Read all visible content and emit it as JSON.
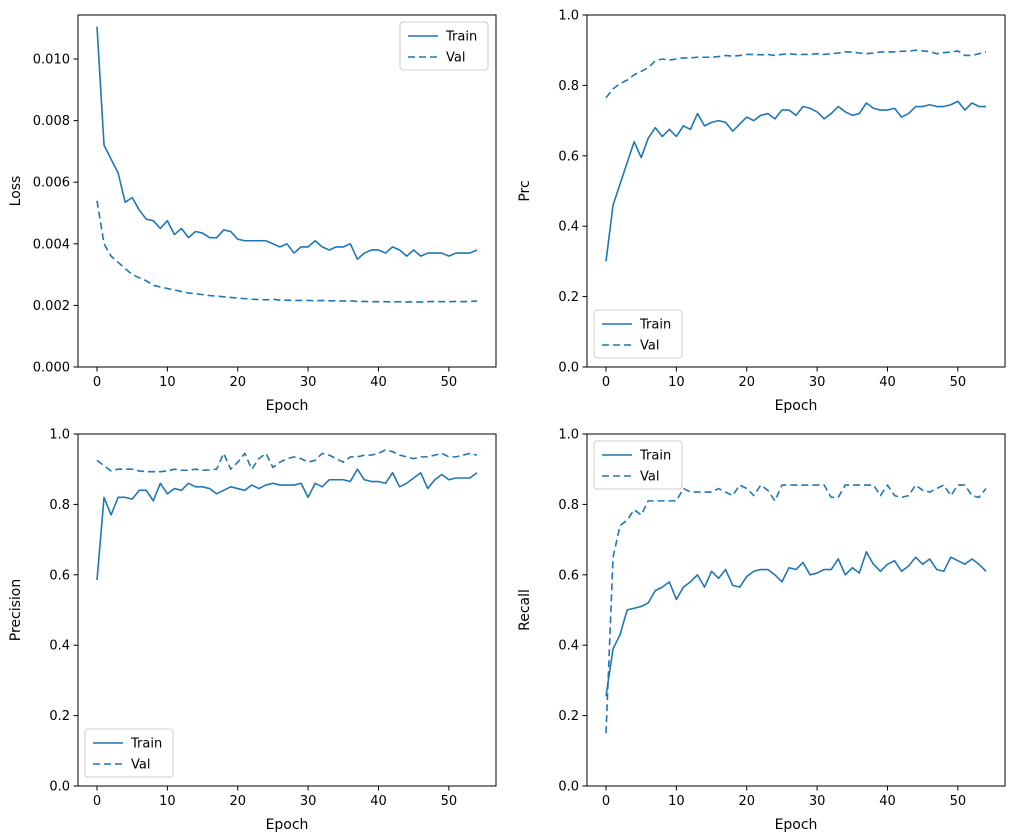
{
  "figure": {
    "background": "#ffffff",
    "line_color": "#1f77b4",
    "spine_color": "#000000",
    "legend_border_color": "#cccccc"
  },
  "epochs": [
    0,
    1,
    2,
    3,
    4,
    5,
    6,
    7,
    8,
    9,
    10,
    11,
    12,
    13,
    14,
    15,
    16,
    17,
    18,
    19,
    20,
    21,
    22,
    23,
    24,
    25,
    26,
    27,
    28,
    29,
    30,
    31,
    32,
    33,
    34,
    35,
    36,
    37,
    38,
    39,
    40,
    41,
    42,
    43,
    44,
    45,
    46,
    47,
    48,
    49,
    50,
    51,
    52,
    53,
    54
  ],
  "chart_data": [
    {
      "type": "line",
      "title": "",
      "xlabel": "Epoch",
      "ylabel": "Loss",
      "xlim": [
        -2.7,
        56.7
      ],
      "ylim": [
        0,
        0.01143
      ],
      "x_ticks": [
        0,
        10,
        20,
        30,
        40,
        50
      ],
      "x_tick_labels": [
        "0",
        "10",
        "20",
        "30",
        "40",
        "50"
      ],
      "y_ticks": [
        0.0,
        0.002,
        0.004,
        0.006,
        0.008,
        0.01
      ],
      "y_tick_labels": [
        "0.000",
        "0.002",
        "0.004",
        "0.006",
        "0.008",
        "0.010"
      ],
      "grid": false,
      "legend_position": "upper-right",
      "legend_entries": [
        {
          "label": "Train",
          "style": "solid"
        },
        {
          "label": "Val",
          "style": "dashed"
        }
      ],
      "series": [
        {
          "name": "Train",
          "style": "solid",
          "values": [
            0.01105,
            0.0072,
            0.00675,
            0.0063,
            0.00535,
            0.0055,
            0.0051,
            0.0048,
            0.00475,
            0.0045,
            0.00475,
            0.0043,
            0.0045,
            0.0042,
            0.0044,
            0.00435,
            0.0042,
            0.0042,
            0.00445,
            0.0044,
            0.00415,
            0.0041,
            0.0041,
            0.0041,
            0.0041,
            0.004,
            0.0039,
            0.004,
            0.0037,
            0.0039,
            0.0039,
            0.0041,
            0.0039,
            0.0038,
            0.0039,
            0.0039,
            0.004,
            0.0035,
            0.0037,
            0.0038,
            0.0038,
            0.0037,
            0.0039,
            0.0038,
            0.0036,
            0.0038,
            0.0036,
            0.0037,
            0.0037,
            0.0037,
            0.0036,
            0.0037,
            0.0037,
            0.0037,
            0.0038
          ]
        },
        {
          "name": "Val",
          "style": "dashed",
          "values": [
            0.0054,
            0.004,
            0.0036,
            0.0034,
            0.0032,
            0.003,
            0.0029,
            0.0028,
            0.00265,
            0.0026,
            0.00255,
            0.0025,
            0.00245,
            0.0024,
            0.00238,
            0.00235,
            0.00232,
            0.0023,
            0.00228,
            0.00226,
            0.00224,
            0.00222,
            0.0022,
            0.00219,
            0.00218,
            0.0022,
            0.00217,
            0.00217,
            0.00216,
            0.00216,
            0.00216,
            0.00215,
            0.00216,
            0.00215,
            0.00215,
            0.00214,
            0.00215,
            0.00213,
            0.00213,
            0.00212,
            0.00212,
            0.00212,
            0.00211,
            0.00212,
            0.00211,
            0.00212,
            0.00211,
            0.00212,
            0.00213,
            0.00212,
            0.00212,
            0.00213,
            0.00212,
            0.00213,
            0.00214
          ]
        }
      ]
    },
    {
      "type": "line",
      "title": "",
      "xlabel": "Epoch",
      "ylabel": "Prc",
      "xlim": [
        -2.7,
        56.7
      ],
      "ylim": [
        0,
        1.0
      ],
      "x_ticks": [
        0,
        10,
        20,
        30,
        40,
        50
      ],
      "x_tick_labels": [
        "0",
        "10",
        "20",
        "30",
        "40",
        "50"
      ],
      "y_ticks": [
        0.0,
        0.2,
        0.4,
        0.6,
        0.8,
        1.0
      ],
      "y_tick_labels": [
        "0.0",
        "0.2",
        "0.4",
        "0.6",
        "0.8",
        "1.0"
      ],
      "grid": false,
      "legend_position": "lower-left",
      "legend_entries": [
        {
          "label": "Train",
          "style": "solid"
        },
        {
          "label": "Val",
          "style": "dashed"
        }
      ],
      "series": [
        {
          "name": "Train",
          "style": "solid",
          "values": [
            0.3,
            0.46,
            0.52,
            0.58,
            0.64,
            0.595,
            0.65,
            0.68,
            0.655,
            0.675,
            0.655,
            0.685,
            0.675,
            0.72,
            0.685,
            0.695,
            0.7,
            0.695,
            0.67,
            0.69,
            0.71,
            0.7,
            0.715,
            0.72,
            0.705,
            0.73,
            0.73,
            0.715,
            0.74,
            0.735,
            0.725,
            0.705,
            0.72,
            0.74,
            0.725,
            0.715,
            0.72,
            0.75,
            0.735,
            0.73,
            0.73,
            0.735,
            0.71,
            0.72,
            0.74,
            0.74,
            0.745,
            0.74,
            0.74,
            0.745,
            0.755,
            0.73,
            0.75,
            0.74,
            0.74
          ]
        },
        {
          "name": "Val",
          "style": "dashed",
          "values": [
            0.765,
            0.79,
            0.805,
            0.815,
            0.83,
            0.84,
            0.85,
            0.87,
            0.875,
            0.872,
            0.875,
            0.878,
            0.878,
            0.88,
            0.88,
            0.88,
            0.882,
            0.885,
            0.883,
            0.885,
            0.888,
            0.888,
            0.887,
            0.888,
            0.885,
            0.888,
            0.89,
            0.888,
            0.888,
            0.888,
            0.89,
            0.888,
            0.89,
            0.892,
            0.895,
            0.895,
            0.892,
            0.89,
            0.892,
            0.895,
            0.895,
            0.895,
            0.897,
            0.897,
            0.9,
            0.898,
            0.896,
            0.89,
            0.893,
            0.895,
            0.898,
            0.885,
            0.885,
            0.89,
            0.895
          ]
        }
      ]
    },
    {
      "type": "line",
      "title": "",
      "xlabel": "Epoch",
      "ylabel": "Precision",
      "xlim": [
        -2.7,
        56.7
      ],
      "ylim": [
        0,
        1.0
      ],
      "x_ticks": [
        0,
        10,
        20,
        30,
        40,
        50
      ],
      "x_tick_labels": [
        "0",
        "10",
        "20",
        "30",
        "40",
        "50"
      ],
      "y_ticks": [
        0.0,
        0.2,
        0.4,
        0.6,
        0.8,
        1.0
      ],
      "y_tick_labels": [
        "0.0",
        "0.2",
        "0.4",
        "0.6",
        "0.8",
        "1.0"
      ],
      "grid": false,
      "legend_position": "lower-left",
      "legend_entries": [
        {
          "label": "Train",
          "style": "solid"
        },
        {
          "label": "Val",
          "style": "dashed"
        }
      ],
      "series": [
        {
          "name": "Train",
          "style": "solid",
          "values": [
            0.585,
            0.82,
            0.77,
            0.82,
            0.82,
            0.815,
            0.84,
            0.84,
            0.81,
            0.86,
            0.83,
            0.845,
            0.84,
            0.86,
            0.85,
            0.85,
            0.845,
            0.83,
            0.84,
            0.85,
            0.845,
            0.84,
            0.855,
            0.845,
            0.855,
            0.86,
            0.855,
            0.855,
            0.855,
            0.86,
            0.82,
            0.86,
            0.85,
            0.87,
            0.87,
            0.87,
            0.865,
            0.9,
            0.87,
            0.865,
            0.865,
            0.86,
            0.89,
            0.85,
            0.86,
            0.875,
            0.89,
            0.845,
            0.87,
            0.885,
            0.87,
            0.875,
            0.875,
            0.875,
            0.89
          ]
        },
        {
          "name": "Val",
          "style": "dashed",
          "values": [
            0.925,
            0.91,
            0.895,
            0.9,
            0.9,
            0.9,
            0.895,
            0.893,
            0.893,
            0.893,
            0.895,
            0.9,
            0.897,
            0.897,
            0.9,
            0.897,
            0.898,
            0.9,
            0.945,
            0.9,
            0.92,
            0.945,
            0.9,
            0.93,
            0.945,
            0.905,
            0.92,
            0.93,
            0.935,
            0.93,
            0.92,
            0.925,
            0.945,
            0.94,
            0.93,
            0.92,
            0.935,
            0.935,
            0.94,
            0.94,
            0.945,
            0.955,
            0.95,
            0.94,
            0.935,
            0.93,
            0.935,
            0.935,
            0.94,
            0.945,
            0.935,
            0.935,
            0.94,
            0.945,
            0.94
          ]
        }
      ]
    },
    {
      "type": "line",
      "title": "",
      "xlabel": "Epoch",
      "ylabel": "Recall",
      "xlim": [
        -2.7,
        56.7
      ],
      "ylim": [
        0,
        1.0
      ],
      "x_ticks": [
        0,
        10,
        20,
        30,
        40,
        50
      ],
      "x_tick_labels": [
        "0",
        "10",
        "20",
        "30",
        "40",
        "50"
      ],
      "y_ticks": [
        0.0,
        0.2,
        0.4,
        0.6,
        0.8,
        1.0
      ],
      "y_tick_labels": [
        "0.0",
        "0.2",
        "0.4",
        "0.6",
        "0.8",
        "1.0"
      ],
      "grid": false,
      "legend_position": "upper-left",
      "legend_entries": [
        {
          "label": "Train",
          "style": "solid"
        },
        {
          "label": "Val",
          "style": "dashed"
        }
      ],
      "series": [
        {
          "name": "Train",
          "style": "solid",
          "values": [
            0.255,
            0.39,
            0.43,
            0.5,
            0.505,
            0.51,
            0.52,
            0.555,
            0.565,
            0.58,
            0.53,
            0.565,
            0.58,
            0.6,
            0.565,
            0.61,
            0.59,
            0.615,
            0.57,
            0.565,
            0.595,
            0.61,
            0.615,
            0.615,
            0.6,
            0.58,
            0.62,
            0.615,
            0.635,
            0.6,
            0.605,
            0.615,
            0.615,
            0.645,
            0.6,
            0.62,
            0.605,
            0.665,
            0.63,
            0.61,
            0.63,
            0.64,
            0.61,
            0.625,
            0.65,
            0.63,
            0.645,
            0.615,
            0.61,
            0.65,
            0.64,
            0.63,
            0.645,
            0.63,
            0.61
          ]
        },
        {
          "name": "Val",
          "style": "dashed",
          "values": [
            0.15,
            0.65,
            0.74,
            0.755,
            0.785,
            0.77,
            0.81,
            0.81,
            0.81,
            0.81,
            0.81,
            0.845,
            0.835,
            0.835,
            0.835,
            0.835,
            0.845,
            0.835,
            0.825,
            0.855,
            0.845,
            0.825,
            0.855,
            0.84,
            0.81,
            0.855,
            0.855,
            0.855,
            0.855,
            0.855,
            0.855,
            0.855,
            0.82,
            0.82,
            0.855,
            0.855,
            0.855,
            0.855,
            0.855,
            0.825,
            0.855,
            0.825,
            0.82,
            0.825,
            0.855,
            0.84,
            0.835,
            0.845,
            0.855,
            0.825,
            0.855,
            0.855,
            0.825,
            0.82,
            0.845
          ]
        }
      ]
    }
  ]
}
